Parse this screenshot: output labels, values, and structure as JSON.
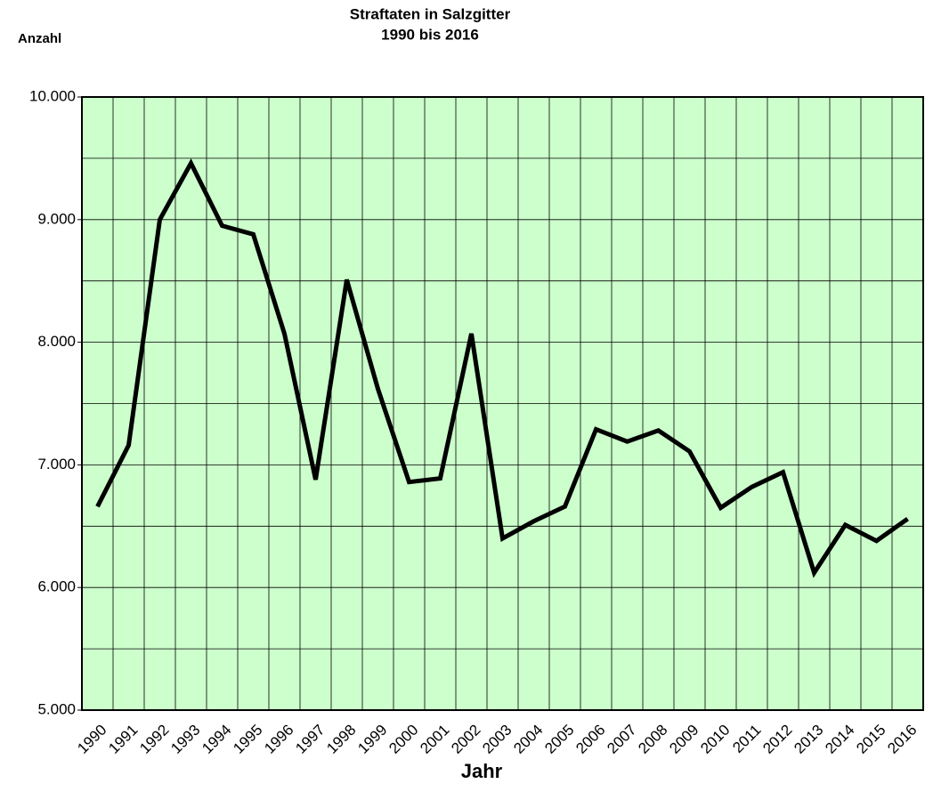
{
  "chart_data": {
    "type": "line",
    "title": "Straftaten in Salzgitter",
    "subtitle": "1990 bis 2016",
    "y_label": "Anzahl",
    "x_label": "Jahr",
    "categories": [
      "1990",
      "1991",
      "1992",
      "1993",
      "1994",
      "1995",
      "1996",
      "1997",
      "1998",
      "1999",
      "2000",
      "2001",
      "2002",
      "2003",
      "2004",
      "2005",
      "2006",
      "2007",
      "2008",
      "2009",
      "2010",
      "2011",
      "2012",
      "2013",
      "2014",
      "2015",
      "2016"
    ],
    "series": [
      {
        "name": "Straftaten",
        "color": "#000000",
        "values": [
          6660,
          7160,
          9000,
          9460,
          8950,
          8880,
          8070,
          6880,
          8510,
          7620,
          6860,
          6890,
          8070,
          6400,
          6540,
          6660,
          7290,
          7190,
          7280,
          7110,
          6650,
          6820,
          6940,
          6120,
          6510,
          6380,
          6560
        ]
      }
    ],
    "ylim": [
      5000,
      10000
    ],
    "yticks": [
      {
        "value": 5000,
        "label": "5.000"
      },
      {
        "value": 6000,
        "label": "6.000"
      },
      {
        "value": 7000,
        "label": "7.000"
      },
      {
        "value": 8000,
        "label": "8.000"
      },
      {
        "value": 9000,
        "label": "9.000"
      },
      {
        "value": 10000,
        "label": "10.000"
      }
    ],
    "minor_yticks": [
      5500,
      6500,
      7500,
      8500,
      9500
    ],
    "grid": true,
    "background": "#ccffcc"
  }
}
